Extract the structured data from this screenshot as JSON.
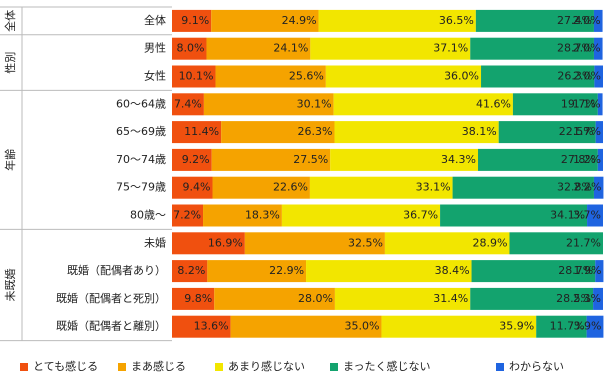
{
  "chart_data": {
    "type": "stacked-bar-horizontal",
    "groups": [
      {
        "name": "全体",
        "categories": [
          "全体"
        ]
      },
      {
        "name": "性別",
        "categories": [
          "男性",
          "女性"
        ]
      },
      {
        "name": "年齢",
        "categories": [
          "60～64歳",
          "65～69歳",
          "70～74歳",
          "75～79歳",
          "80歳～"
        ]
      },
      {
        "name": "未既婚",
        "categories": [
          "未婚",
          "既婚（配偶者あり）",
          "既婚（配偶者と死別）",
          "既婚（配偶者と離別）"
        ]
      }
    ],
    "series": [
      {
        "name": "とても感じる",
        "color": "#f0500f",
        "values": [
          9.1,
          8.0,
          10.1,
          7.4,
          11.4,
          9.2,
          9.4,
          7.2,
          16.9,
          8.2,
          9.8,
          13.6
        ],
        "value_labels": [
          "9.1%",
          "8.0%",
          "10.1%",
          "7.4%",
          "11.4%",
          "9.2%",
          "9.4%",
          "7.2%",
          "16.9%",
          "8.2%",
          "9.8%",
          "13.6%"
        ]
      },
      {
        "name": "まあ感じる",
        "color": "#f5a300",
        "values": [
          24.9,
          24.1,
          25.6,
          30.1,
          26.3,
          27.5,
          22.6,
          18.3,
          32.5,
          22.9,
          28.0,
          35.0
        ],
        "value_labels": [
          "24.9%",
          "24.1%",
          "25.6%",
          "30.1%",
          "26.3%",
          "27.5%",
          "22.6%",
          "18.3%",
          "32.5%",
          "22.9%",
          "28.0%",
          "35.0%"
        ]
      },
      {
        "name": "あまり感じない",
        "color": "#f2e600",
        "values": [
          36.5,
          37.1,
          36.0,
          41.6,
          38.1,
          34.3,
          33.1,
          36.7,
          28.9,
          38.4,
          31.4,
          35.9
        ],
        "value_labels": [
          "36.5%",
          "37.1%",
          "36.0%",
          "41.6%",
          "38.1%",
          "34.3%",
          "33.1%",
          "36.7%",
          "28.9%",
          "38.4%",
          "31.4%",
          "35.9%"
        ]
      },
      {
        "name": "まったく感じない",
        "color": "#13a36e",
        "values": [
          27.4,
          28.7,
          26.3,
          19.7,
          22.5,
          27.8,
          32.8,
          34.1,
          21.7,
          28.7,
          28.5,
          11.7
        ],
        "value_labels": [
          "27.4%",
          "28.7%",
          "26.3%",
          "19.7%",
          "22.5%",
          "27.8%",
          "32.8%",
          "34.1%",
          "21.7%",
          "28.7%",
          "28.5%",
          "11.7%"
        ]
      },
      {
        "name": "わからない",
        "color": "#1f64e0",
        "values": [
          2.0,
          2.0,
          2.0,
          1.1,
          1.7,
          1.2,
          2.2,
          3.7,
          null,
          1.9,
          2.3,
          3.9
        ],
        "value_labels": [
          "2.0%",
          "2.0%",
          "2.0%",
          "1.1%",
          "1.7%",
          "1.2%",
          "2.2%",
          "3.7%",
          null,
          "1.9%",
          "2.3%",
          "3.9%"
        ]
      }
    ],
    "xlim": [
      0,
      100
    ]
  }
}
